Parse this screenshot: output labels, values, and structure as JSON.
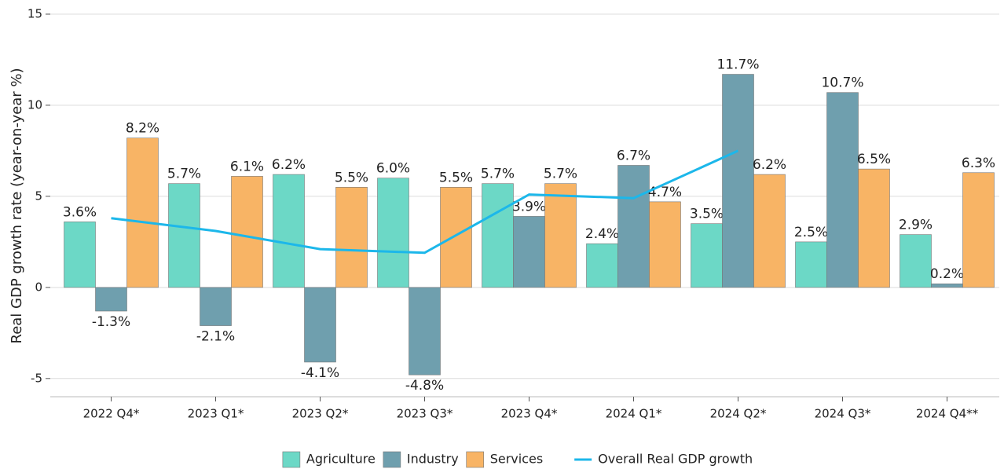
{
  "chart_data": {
    "type": "bar",
    "y_label": "Real GDP growth rate (year-on-year %)",
    "categories": [
      "2022 Q4*",
      "2023 Q1*",
      "2023 Q2*",
      "2023 Q3*",
      "2023 Q4*",
      "2024 Q1*",
      "2024 Q2*",
      "2024 Q3*",
      "2024 Q4**"
    ],
    "series": [
      {
        "name": "Agriculture",
        "color": "#6cd8c6",
        "values": [
          3.6,
          5.7,
          6.2,
          6.0,
          5.7,
          2.4,
          3.5,
          2.5,
          2.9
        ],
        "value_labels": [
          "3.6%",
          "5.7%",
          "6.2%",
          "6.0%",
          "5.7%",
          "2.4%",
          "3.5%",
          "2.5%",
          "2.9%"
        ]
      },
      {
        "name": "Industry",
        "color": "#6f9fae",
        "values": [
          -1.3,
          -2.1,
          -4.1,
          -4.8,
          3.9,
          6.7,
          11.7,
          10.7,
          0.2
        ],
        "value_labels": [
          "-1.3%",
          "-2.1%",
          "-4.1%",
          "-4.8%",
          "3.9%",
          "6.7%",
          "11.7%",
          "10.7%",
          "0.2%"
        ]
      },
      {
        "name": "Services",
        "color": "#f8b465",
        "values": [
          8.2,
          6.1,
          5.5,
          5.5,
          5.7,
          4.7,
          6.2,
          6.5,
          6.3
        ],
        "value_labels": [
          "8.2%",
          "6.1%",
          "5.5%",
          "5.5%",
          "5.7%",
          "4.7%",
          "6.2%",
          "6.5%",
          "6.3%"
        ]
      },
      {
        "name": "Overall Real GDP growth",
        "type": "line",
        "color": "#1cb7ea",
        "values": [
          3.8,
          3.1,
          2.1,
          1.9,
          5.1,
          4.9,
          7.5,
          null,
          null
        ]
      }
    ],
    "ylim": [
      -6,
      15
    ],
    "yticks": [
      -5,
      0,
      5,
      10,
      15
    ],
    "grid": true
  }
}
